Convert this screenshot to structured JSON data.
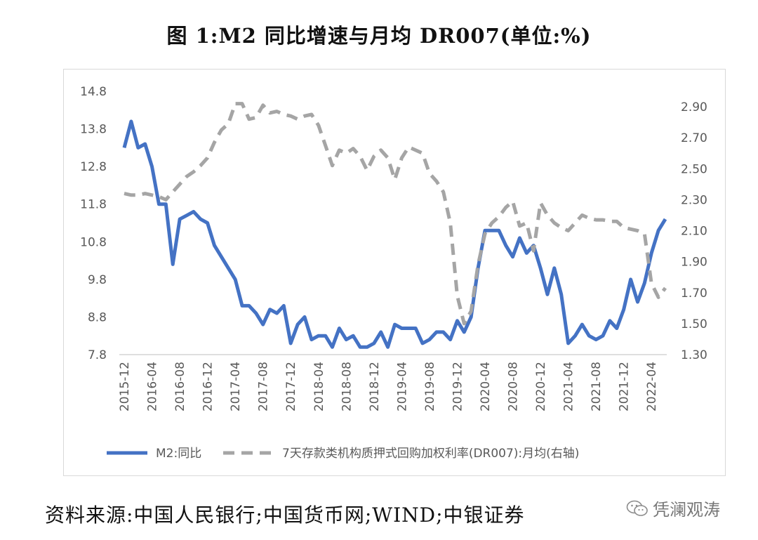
{
  "title": "图 1:M2 同比增速与月均 DR007(单位:%)",
  "source": "资料来源:中国人民银行;中国货币网;WIND;中银证券",
  "watermark": "凭澜观涛",
  "colors": {
    "m2": "#4472c4",
    "dr007": "#a5a5a5",
    "axis_text": "#595959",
    "frame": "#d9d9d9"
  },
  "chart_data": {
    "type": "line",
    "x_tick_labels": [
      "2015-12",
      "2016-04",
      "2016-08",
      "2016-12",
      "2017-04",
      "2017-08",
      "2017-12",
      "2018-04",
      "2018-08",
      "2018-12",
      "2019-04",
      "2019-08",
      "2019-12",
      "2020-04",
      "2020-08",
      "2020-12",
      "2021-04",
      "2021-08",
      "2021-12",
      "2022-04"
    ],
    "y_left": {
      "ticks": [
        "14.8",
        "13.8",
        "12.8",
        "11.8",
        "10.8",
        "9.8",
        "8.8",
        "7.8"
      ],
      "min": 7.8,
      "max": 14.8
    },
    "y_right": {
      "ticks": [
        "2.90",
        "2.70",
        "2.50",
        "2.30",
        "2.10",
        "1.90",
        "1.70",
        "1.50",
        "1.30"
      ],
      "min": 1.3,
      "max": 3.0
    },
    "x_start": "2015-12",
    "x_end": "2022-06",
    "grid": false,
    "legend_position": "bottom",
    "series": [
      {
        "name": "M2:同比",
        "axis": "left",
        "style": "solid",
        "values": [
          13.3,
          14.0,
          13.3,
          13.4,
          12.8,
          11.8,
          11.8,
          10.2,
          11.4,
          11.5,
          11.6,
          11.4,
          11.3,
          10.7,
          10.4,
          10.1,
          9.8,
          9.1,
          9.1,
          8.9,
          8.6,
          9.0,
          8.9,
          9.1,
          8.1,
          8.6,
          8.8,
          8.2,
          8.3,
          8.3,
          8.0,
          8.5,
          8.2,
          8.3,
          8.0,
          8.0,
          8.1,
          8.4,
          8.0,
          8.6,
          8.5,
          8.5,
          8.5,
          8.1,
          8.2,
          8.4,
          8.4,
          8.2,
          8.7,
          8.4,
          8.8,
          10.1,
          11.1,
          11.1,
          11.1,
          10.7,
          10.4,
          10.9,
          10.5,
          10.7,
          10.1,
          9.4,
          10.1,
          9.4,
          8.1,
          8.3,
          8.6,
          8.3,
          8.2,
          8.3,
          8.7,
          8.5,
          9.0,
          9.8,
          9.2,
          9.7,
          10.5,
          11.1,
          11.4
        ]
      },
      {
        "name": "7天存款类机构质押式回购加权利率(DR007):月均(右轴)",
        "axis": "right",
        "style": "dashed",
        "values": [
          2.34,
          2.33,
          2.33,
          2.34,
          2.33,
          2.32,
          2.3,
          2.35,
          2.4,
          2.45,
          2.48,
          2.52,
          2.57,
          2.67,
          2.75,
          2.79,
          2.92,
          2.92,
          2.82,
          2.83,
          2.91,
          2.86,
          2.87,
          2.85,
          2.84,
          2.82,
          2.84,
          2.85,
          2.78,
          2.65,
          2.52,
          2.62,
          2.6,
          2.63,
          2.58,
          2.49,
          2.58,
          2.62,
          2.57,
          2.43,
          2.57,
          2.64,
          2.62,
          2.6,
          2.47,
          2.42,
          2.35,
          2.15,
          1.68,
          1.5,
          1.58,
          1.88,
          2.08,
          2.15,
          2.19,
          2.25,
          2.29,
          2.13,
          2.15,
          1.97,
          2.28,
          2.2,
          2.15,
          2.12,
          2.1,
          2.15,
          2.2,
          2.18,
          2.17,
          2.17,
          2.16,
          2.16,
          2.12,
          2.11,
          2.1,
          2.08,
          1.76,
          1.67,
          1.73
        ]
      }
    ],
    "legend": [
      "M2:同比",
      "7天存款类机构质押式回购加权利率(DR007):月均(右轴)"
    ]
  }
}
